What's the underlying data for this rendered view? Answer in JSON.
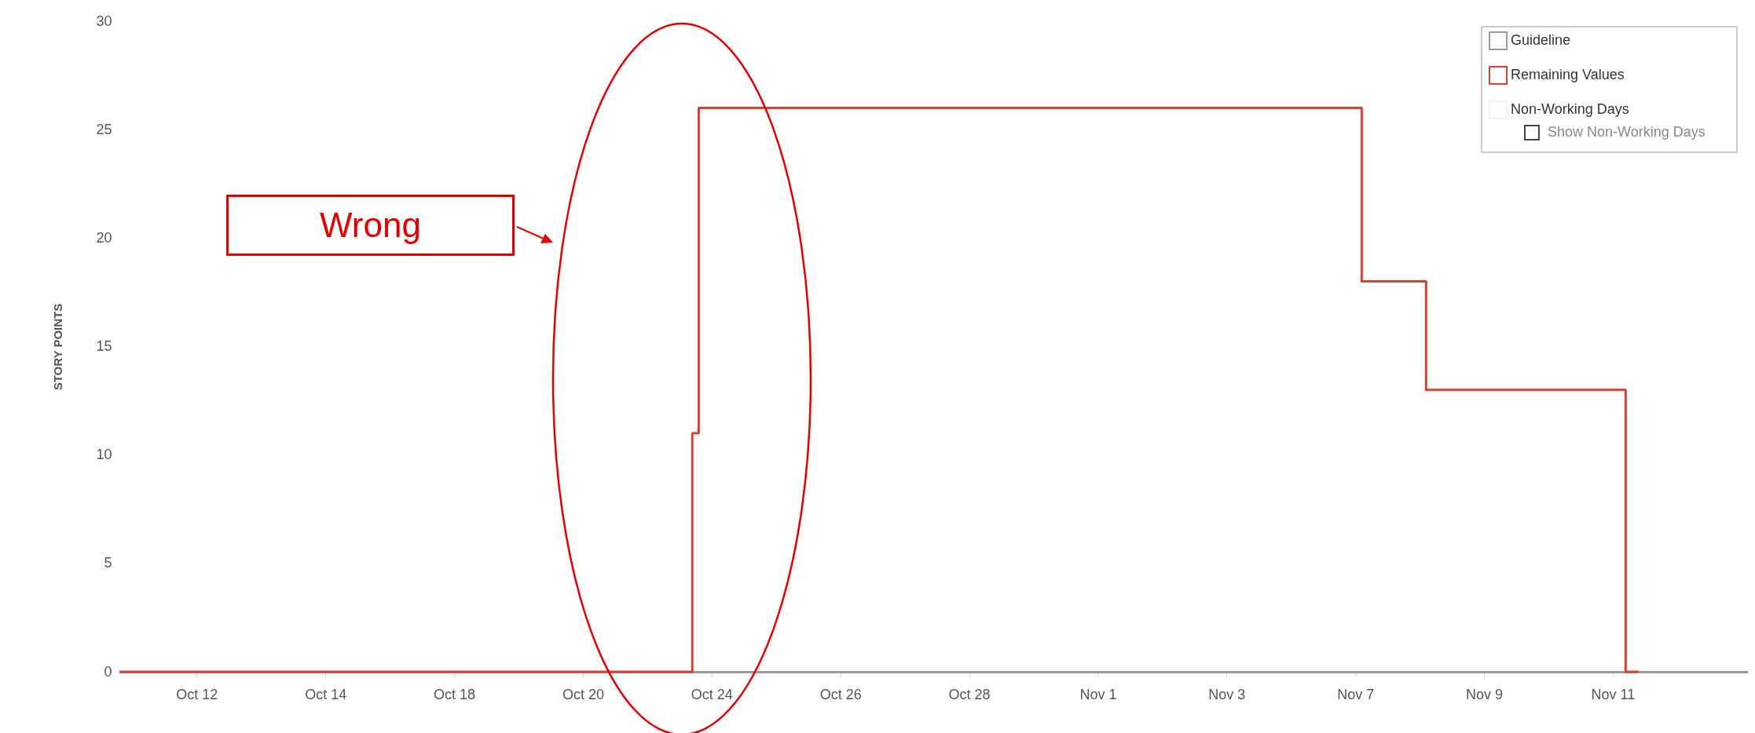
{
  "chart_data": {
    "type": "step",
    "ylabel": "STORY POINTS",
    "categories": [
      null,
      null,
      null,
      null,
      null,
      null,
      null,
      null,
      null,
      null,
      null,
      null,
      "Oct 12",
      null,
      null,
      null,
      null,
      null,
      null,
      null,
      null,
      null,
      null,
      null,
      null,
      null,
      null,
      null,
      null,
      null,
      null,
      null,
      "Oct 14",
      null,
      null,
      null,
      null,
      null,
      null,
      null,
      null,
      null,
      null,
      null,
      null,
      null,
      null,
      null,
      null,
      null,
      null,
      null,
      "Oct 18",
      null,
      null,
      null,
      null,
      null,
      null,
      null,
      null,
      null,
      null,
      null,
      null,
      null,
      null,
      null,
      null,
      null,
      null,
      null,
      "Oct 20",
      null,
      null,
      null,
      null,
      null,
      null,
      null,
      null,
      null,
      null,
      null,
      null,
      null,
      null,
      null,
      null,
      null,
      null,
      null,
      "Oct 24",
      null,
      null,
      null,
      null,
      null,
      null,
      null,
      null,
      null,
      null,
      null,
      null,
      null,
      null,
      null,
      null,
      null,
      null,
      null,
      "Oct 26",
      null,
      null,
      null,
      null,
      null,
      null,
      null,
      null,
      null,
      null,
      null,
      null,
      null,
      null,
      null,
      null,
      null,
      null,
      null,
      "Oct 28",
      null,
      null,
      null,
      null,
      null,
      null,
      null,
      null,
      null,
      null,
      null,
      null,
      null,
      null,
      null,
      null,
      null,
      null,
      null,
      "Nov 1",
      null,
      null,
      null,
      null,
      null,
      null,
      null,
      null,
      null,
      null,
      null,
      null,
      null,
      null,
      null,
      null,
      null,
      null,
      null,
      "Nov 3",
      null,
      null,
      null,
      null,
      null,
      null,
      null,
      null,
      null,
      null,
      null,
      null,
      null,
      null,
      null,
      null,
      null,
      null,
      null,
      "Nov 7",
      null,
      null,
      null,
      null,
      null,
      null,
      null,
      null,
      null,
      null,
      null,
      null,
      null,
      null,
      null,
      null,
      null,
      null,
      null,
      "Nov 9",
      null,
      null,
      null,
      null,
      null,
      null,
      null,
      null,
      null,
      null,
      null,
      null,
      null,
      null,
      null,
      null,
      null,
      null,
      null,
      "Nov 11",
      null,
      null,
      null,
      null,
      null,
      null,
      null,
      null,
      null,
      null,
      null,
      null,
      null,
      null,
      null,
      null,
      null,
      null,
      null,
      null,
      null
    ],
    "series": [
      {
        "name": "Guideline",
        "color": "#999999",
        "values": [
          null,
          null,
          null,
          null,
          null,
          null,
          null,
          null,
          null,
          null,
          null,
          null,
          null,
          null,
          null,
          null,
          null,
          null,
          null,
          null,
          null,
          null,
          null,
          null,
          null,
          null,
          null,
          null,
          null,
          null,
          null,
          null,
          null,
          null,
          null,
          null,
          null,
          null,
          null,
          null,
          null,
          null,
          null,
          null,
          null,
          null,
          null,
          null,
          null,
          null,
          null,
          null,
          null,
          null,
          null,
          null,
          null,
          null,
          null,
          null,
          null,
          null,
          null,
          null,
          null,
          null,
          null,
          null,
          null,
          null,
          null,
          null,
          null,
          null,
          null,
          null,
          null,
          null,
          null,
          null,
          null,
          null,
          null,
          null,
          null,
          null,
          null,
          null,
          null,
          null,
          null,
          null,
          null,
          null,
          null,
          null,
          null,
          null,
          null,
          null,
          null,
          null,
          null,
          null,
          null,
          null,
          null,
          null,
          null,
          null,
          null,
          null,
          null,
          null,
          null,
          null,
          null,
          null,
          null,
          null,
          null,
          null,
          null,
          null,
          null,
          null,
          null,
          null,
          null,
          null,
          null,
          null,
          null,
          null,
          null,
          null,
          null,
          null,
          null,
          null,
          null,
          null,
          null,
          null,
          null,
          null,
          null,
          null,
          null,
          null,
          null,
          null,
          null,
          null,
          null,
          null,
          null,
          null,
          null,
          null,
          null,
          null,
          null,
          null,
          null,
          null,
          null,
          null,
          null,
          null,
          null,
          null,
          null,
          null,
          null,
          null,
          null,
          null,
          null,
          null,
          null,
          null,
          null,
          null,
          null,
          null,
          null,
          null,
          null,
          null,
          null,
          null,
          null,
          null,
          null,
          null,
          null,
          null,
          null,
          null,
          null,
          null,
          null,
          null,
          null,
          null,
          null,
          null,
          null,
          null,
          null,
          null,
          null,
          null,
          null,
          null,
          null,
          null,
          null,
          null,
          null,
          null,
          null,
          null,
          null,
          null,
          null,
          null,
          null,
          null,
          null,
          null,
          null,
          null,
          null,
          null,
          null,
          null,
          null,
          null,
          null,
          null,
          null,
          null,
          null,
          null,
          null,
          null,
          null,
          null,
          null,
          null,
          null,
          null
        ]
      },
      {
        "name": "Remaining Values",
        "color": "#d04437",
        "values": [
          0,
          0,
          0,
          0,
          0,
          0,
          0,
          0,
          0,
          0,
          0,
          0,
          0,
          0,
          0,
          0,
          0,
          0,
          0,
          0,
          0,
          0,
          0,
          0,
          0,
          0,
          0,
          0,
          0,
          0,
          0,
          0,
          0,
          0,
          0,
          0,
          0,
          0,
          0,
          0,
          0,
          0,
          0,
          0,
          0,
          0,
          0,
          0,
          0,
          0,
          0,
          0,
          0,
          0,
          0,
          0,
          0,
          0,
          0,
          0,
          0,
          0,
          0,
          0,
          0,
          0,
          0,
          0,
          0,
          0,
          0,
          0,
          0,
          0,
          0,
          0,
          0,
          0,
          0,
          0,
          0,
          0,
          0,
          0,
          0,
          0,
          0,
          0,
          0,
          11,
          26,
          26,
          26,
          26,
          26,
          26,
          26,
          26,
          26,
          26,
          26,
          26,
          26,
          26,
          26,
          26,
          26,
          26,
          26,
          26,
          26,
          26,
          26,
          26,
          26,
          26,
          26,
          26,
          26,
          26,
          26,
          26,
          26,
          26,
          26,
          26,
          26,
          26,
          26,
          26,
          26,
          26,
          26,
          26,
          26,
          26,
          26,
          26,
          26,
          26,
          26,
          26,
          26,
          26,
          26,
          26,
          26,
          26,
          26,
          26,
          26,
          26,
          26,
          26,
          26,
          26,
          26,
          26,
          26,
          26,
          26,
          26,
          26,
          26,
          26,
          26,
          26,
          26,
          26,
          26,
          26,
          26,
          26,
          26,
          26,
          26,
          26,
          26,
          26,
          26,
          26,
          26,
          26,
          26,
          26,
          26,
          26,
          26,
          26,
          26,
          26,
          26,
          26,
          18,
          18,
          18,
          18,
          18,
          18,
          18,
          18,
          18,
          18,
          13,
          13,
          13,
          13,
          13,
          13,
          13,
          13,
          13,
          13,
          13,
          13,
          13,
          13,
          13,
          13,
          13,
          13,
          13,
          13,
          13,
          13,
          13,
          13,
          13,
          13,
          13,
          13,
          13,
          13,
          13,
          0,
          0,
          0,
          null,
          null,
          null,
          null,
          null,
          null,
          null,
          null,
          null,
          null,
          null,
          null,
          null,
          null,
          null,
          null,
          null
        ]
      },
      {
        "name": "Non-Working Days",
        "color": "#f0f0f0",
        "values": [
          null,
          null,
          null,
          null,
          null,
          null,
          null,
          null,
          null,
          null,
          null,
          null,
          null,
          null,
          null,
          null,
          null,
          null,
          null,
          null,
          null,
          null,
          null,
          null,
          null,
          null,
          null,
          null,
          null,
          null,
          null,
          null,
          null,
          null,
          null,
          null,
          null,
          null,
          null,
          null,
          null,
          null,
          null,
          null,
          null,
          null,
          null,
          null,
          null,
          null,
          null,
          null,
          null,
          null,
          null,
          null,
          null,
          null,
          null,
          null,
          null,
          null,
          null,
          null,
          null,
          null,
          null,
          null,
          null,
          null,
          null,
          null,
          null,
          null,
          null,
          null,
          null,
          null,
          null,
          null,
          null,
          null,
          null,
          null,
          null,
          null,
          null,
          null,
          null,
          null,
          null,
          null,
          null,
          null,
          null,
          null,
          null,
          null,
          null,
          null,
          null,
          null,
          null,
          null,
          null,
          null,
          null,
          null,
          null,
          null,
          null,
          null,
          null,
          null,
          null,
          null,
          null,
          null,
          null,
          null,
          null,
          null,
          null,
          null,
          null,
          null,
          null,
          null,
          null,
          null,
          null,
          null,
          null,
          null,
          null,
          null,
          null,
          null,
          null,
          null,
          null,
          null,
          null,
          null,
          null,
          null,
          null,
          null,
          null,
          null,
          null,
          null,
          null,
          null,
          null,
          null,
          null,
          null,
          null,
          null,
          null,
          null,
          null,
          null,
          null,
          null,
          null,
          null,
          null,
          null,
          null,
          null,
          null,
          null,
          null,
          null,
          null,
          null,
          null,
          null,
          null,
          null,
          null,
          null,
          null,
          null,
          null,
          null,
          null,
          null,
          null,
          null,
          null,
          null,
          null,
          null,
          null,
          null,
          null,
          null,
          null,
          null,
          null,
          null,
          null,
          null,
          null,
          null,
          null,
          null,
          null,
          null,
          null,
          null,
          null,
          null,
          null,
          null,
          null,
          null,
          null,
          null,
          null,
          null,
          null,
          null,
          null,
          null,
          null,
          null,
          null,
          null,
          null,
          null,
          null,
          null,
          null,
          null,
          null,
          null,
          null,
          null,
          null,
          null,
          null,
          null,
          null,
          null,
          null,
          null,
          null,
          null,
          null,
          null
        ]
      }
    ],
    "ylim": [
      0,
      30
    ],
    "yticks": [
      0,
      5,
      10,
      15,
      20,
      25,
      30
    ],
    "grid": false,
    "legend": "top right",
    "annotations": [
      "Wrong",
      "Show Non-Working Days"
    ]
  }
}
